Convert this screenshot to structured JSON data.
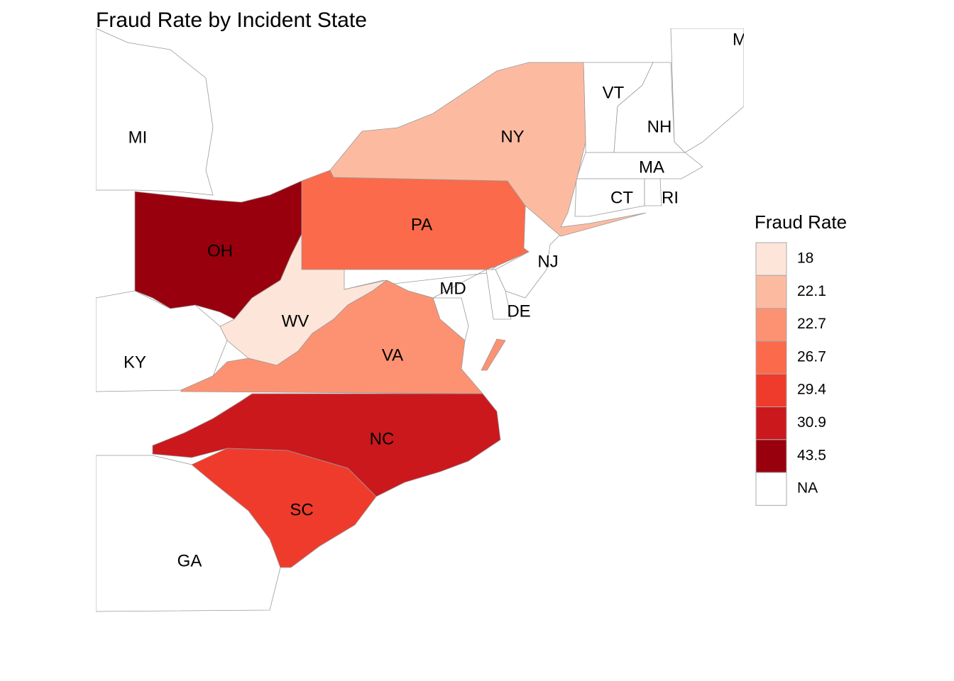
{
  "title": "Fraud Rate by Incident State",
  "legend": {
    "title": "Fraud Rate",
    "items": [
      {
        "value": 18,
        "color": "#fee5d9"
      },
      {
        "value": 22.1,
        "color": "#fcbba1"
      },
      {
        "value": 22.7,
        "color": "#fc9272"
      },
      {
        "value": 26.7,
        "color": "#fb6a4a"
      },
      {
        "value": 29.4,
        "color": "#ef3b2c"
      },
      {
        "value": 30.9,
        "color": "#cb181d"
      },
      {
        "value": 43.5,
        "color": "#99000d"
      },
      {
        "label": "NA",
        "color": "#ffffff"
      }
    ]
  },
  "states": [
    {
      "label": "MI",
      "value": null
    },
    {
      "label": "KY",
      "value": null
    },
    {
      "label": "GA",
      "value": null
    },
    {
      "label": "VT",
      "value": null
    },
    {
      "label": "NH",
      "value": null
    },
    {
      "label": "MA",
      "value": null
    },
    {
      "label": "CT",
      "value": null
    },
    {
      "label": "RI",
      "value": null
    },
    {
      "label": "NJ",
      "value": null
    },
    {
      "label": "MD",
      "value": null
    },
    {
      "label": "DE",
      "value": null
    },
    {
      "label": "ME",
      "value": null
    },
    {
      "label": "OH",
      "value": 43.5
    },
    {
      "label": "PA",
      "value": 26.7
    },
    {
      "label": "NY",
      "value": 22.1
    },
    {
      "label": "WV",
      "value": 18
    },
    {
      "label": "VA",
      "value": 22.7
    },
    {
      "label": "NC",
      "value": 30.9
    },
    {
      "label": "SC",
      "value": 29.4
    }
  ]
}
